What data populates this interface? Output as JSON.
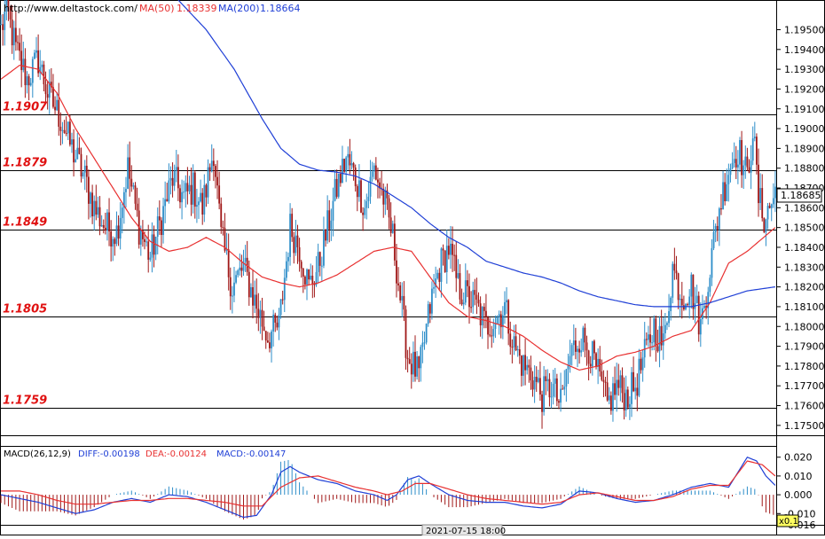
{
  "header": {
    "url": "http://www.deltastock.com/",
    "ma50_label": "MA(50)",
    "ma50_value": "1.18339",
    "ma200_label": "MA(200)",
    "ma200_value": "1.18664"
  },
  "macd_header": {
    "label": "MACD(26,12,9)",
    "diff": "DIFF:-0.00198",
    "dea": "DEA:-0.00124",
    "macd": "MACD:-0.00147"
  },
  "footer": {
    "date_label": "2021-07-15 18:00",
    "zoom_label": "x0.1"
  },
  "colors": {
    "bull": "#2e8ec9",
    "bear": "#a01818",
    "ma50": "#e83030",
    "ma200": "#1f3fd6",
    "level_text": "#e01010"
  },
  "chart_data": [
    {
      "type": "candlestick",
      "title": "",
      "ylim": [
        1.1745,
        1.1965
      ],
      "y_ticks": [
        "1.19500",
        "1.19400",
        "1.19300",
        "1.19200",
        "1.19100",
        "1.19000",
        "1.18900",
        "1.18800",
        "1.18700",
        "1.18600",
        "1.18500",
        "1.18400",
        "1.18300",
        "1.18200",
        "1.18100",
        "1.18000",
        "1.17900",
        "1.17800",
        "1.17700",
        "1.17600",
        "1.17500"
      ],
      "current_price": "1.18685",
      "levels": [
        {
          "label": "1.1907",
          "value": 1.1907
        },
        {
          "label": "1.1879",
          "value": 1.1879
        },
        {
          "label": "1.1849",
          "value": 1.1849
        },
        {
          "label": "1.1805",
          "value": 1.1805
        },
        {
          "label": "1.1759",
          "value": 1.1759
        }
      ],
      "price_anchors": [
        [
          0,
          1.195
        ],
        [
          3,
          1.196
        ],
        [
          8,
          1.194
        ],
        [
          14,
          1.1925
        ],
        [
          20,
          1.1935
        ],
        [
          25,
          1.1918
        ],
        [
          32,
          1.1905
        ],
        [
          38,
          1.189
        ],
        [
          45,
          1.1875
        ],
        [
          50,
          1.186
        ],
        [
          56,
          1.185
        ],
        [
          62,
          1.1848
        ],
        [
          68,
          1.188
        ],
        [
          74,
          1.185
        ],
        [
          80,
          1.1835
        ],
        [
          86,
          1.1855
        ],
        [
          92,
          1.1875
        ],
        [
          98,
          1.1865
        ],
        [
          103,
          1.187
        ],
        [
          108,
          1.186
        ],
        [
          114,
          1.189
        ],
        [
          118,
          1.1845
        ],
        [
          124,
          1.182
        ],
        [
          130,
          1.183
        ],
        [
          137,
          1.181
        ],
        [
          143,
          1.1795
        ],
        [
          149,
          1.18
        ],
        [
          155,
          1.185
        ],
        [
          160,
          1.184
        ],
        [
          165,
          1.182
        ],
        [
          170,
          1.183
        ],
        [
          175,
          1.185
        ],
        [
          180,
          1.187
        ],
        [
          185,
          1.1885
        ],
        [
          190,
          1.1875
        ],
        [
          195,
          1.186
        ],
        [
          200,
          1.188
        ],
        [
          205,
          1.1865
        ],
        [
          210,
          1.1845
        ],
        [
          214,
          1.1815
        ],
        [
          218,
          1.1785
        ],
        [
          224,
          1.1775
        ],
        [
          230,
          1.181
        ],
        [
          235,
          1.183
        ],
        [
          240,
          1.184
        ],
        [
          245,
          1.182
        ],
        [
          250,
          1.1815
        ],
        [
          255,
          1.181
        ],
        [
          260,
          1.18
        ],
        [
          266,
          1.1805
        ],
        [
          270,
          1.181
        ],
        [
          275,
          1.179
        ],
        [
          280,
          1.178
        ],
        [
          285,
          1.1775
        ],
        [
          290,
          1.1765
        ],
        [
          295,
          1.177
        ],
        [
          300,
          1.176
        ],
        [
          305,
          1.1785
        ],
        [
          310,
          1.1795
        ],
        [
          315,
          1.179
        ],
        [
          320,
          1.1775
        ],
        [
          325,
          1.176
        ],
        [
          330,
          1.177
        ],
        [
          335,
          1.1765
        ],
        [
          340,
          1.177
        ],
        [
          345,
          1.1785
        ],
        [
          350,
          1.18
        ],
        [
          355,
          1.179
        ],
        [
          360,
          1.183
        ],
        [
          365,
          1.1815
        ],
        [
          370,
          1.182
        ],
        [
          375,
          1.18
        ],
        [
          380,
          1.183
        ],
        [
          385,
          1.186
        ],
        [
          390,
          1.188
        ],
        [
          395,
          1.189
        ],
        [
          400,
          1.1875
        ],
        [
          403,
          1.19
        ],
        [
          406,
          1.1865
        ],
        [
          409,
          1.1855
        ],
        [
          412,
          1.186
        ],
        [
          415,
          1.1868
        ]
      ],
      "ma50_anchors": [
        [
          0,
          1.1925
        ],
        [
          10,
          1.1932
        ],
        [
          20,
          1.193
        ],
        [
          30,
          1.1918
        ],
        [
          40,
          1.19
        ],
        [
          50,
          1.1885
        ],
        [
          60,
          1.187
        ],
        [
          70,
          1.1855
        ],
        [
          80,
          1.1843
        ],
        [
          90,
          1.1838
        ],
        [
          100,
          1.184
        ],
        [
          110,
          1.1845
        ],
        [
          120,
          1.184
        ],
        [
          130,
          1.1832
        ],
        [
          140,
          1.1825
        ],
        [
          150,
          1.1822
        ],
        [
          160,
          1.182
        ],
        [
          170,
          1.1822
        ],
        [
          180,
          1.1826
        ],
        [
          190,
          1.1832
        ],
        [
          200,
          1.1838
        ],
        [
          210,
          1.184
        ],
        [
          220,
          1.1838
        ],
        [
          230,
          1.1825
        ],
        [
          240,
          1.1812
        ],
        [
          250,
          1.1805
        ],
        [
          260,
          1.1803
        ],
        [
          270,
          1.18
        ],
        [
          280,
          1.1795
        ],
        [
          290,
          1.1788
        ],
        [
          300,
          1.1782
        ],
        [
          310,
          1.1778
        ],
        [
          320,
          1.178
        ],
        [
          330,
          1.1785
        ],
        [
          340,
          1.1787
        ],
        [
          350,
          1.179
        ],
        [
          360,
          1.1795
        ],
        [
          370,
          1.1798
        ],
        [
          380,
          1.1812
        ],
        [
          390,
          1.1832
        ],
        [
          400,
          1.1838
        ],
        [
          415,
          1.185
        ]
      ],
      "ma200_anchors": [
        [
          95,
          1.1965
        ],
        [
          110,
          1.195
        ],
        [
          125,
          1.193
        ],
        [
          140,
          1.1905
        ],
        [
          150,
          1.189
        ],
        [
          160,
          1.1882
        ],
        [
          170,
          1.1879
        ],
        [
          180,
          1.1878
        ],
        [
          190,
          1.1876
        ],
        [
          200,
          1.1872
        ],
        [
          210,
          1.1866
        ],
        [
          220,
          1.186
        ],
        [
          230,
          1.1852
        ],
        [
          240,
          1.1845
        ],
        [
          250,
          1.184
        ],
        [
          260,
          1.1833
        ],
        [
          270,
          1.183
        ],
        [
          280,
          1.1827
        ],
        [
          290,
          1.1825
        ],
        [
          300,
          1.1822
        ],
        [
          310,
          1.1818
        ],
        [
          320,
          1.1815
        ],
        [
          330,
          1.1813
        ],
        [
          340,
          1.1811
        ],
        [
          350,
          1.181
        ],
        [
          360,
          1.181
        ],
        [
          370,
          1.181
        ],
        [
          380,
          1.1812
        ],
        [
          390,
          1.1815
        ],
        [
          400,
          1.1818
        ],
        [
          415,
          1.182
        ]
      ]
    },
    {
      "type": "macd",
      "ylim": [
        -0.016,
        0.026
      ],
      "y_ticks": [
        "0.020",
        "0.010",
        "0.000",
        "-0.010",
        "-0.016"
      ],
      "diff_anchors": [
        [
          0,
          0.0
        ],
        [
          10,
          -0.002
        ],
        [
          20,
          -0.004
        ],
        [
          30,
          -0.007
        ],
        [
          40,
          -0.01
        ],
        [
          50,
          -0.008
        ],
        [
          60,
          -0.004
        ],
        [
          70,
          -0.002
        ],
        [
          80,
          -0.004
        ],
        [
          90,
          0.0
        ],
        [
          100,
          -0.001
        ],
        [
          110,
          -0.004
        ],
        [
          120,
          -0.008
        ],
        [
          130,
          -0.012
        ],
        [
          137,
          -0.011
        ],
        [
          145,
          0.0
        ],
        [
          150,
          0.012
        ],
        [
          155,
          0.015
        ],
        [
          160,
          0.012
        ],
        [
          170,
          0.008
        ],
        [
          180,
          0.006
        ],
        [
          190,
          0.002
        ],
        [
          200,
          0.0
        ],
        [
          207,
          -0.003
        ],
        [
          212,
          0.0
        ],
        [
          218,
          0.008
        ],
        [
          224,
          0.01
        ],
        [
          230,
          0.006
        ],
        [
          240,
          0.0
        ],
        [
          250,
          -0.003
        ],
        [
          260,
          -0.004
        ],
        [
          270,
          -0.004
        ],
        [
          280,
          -0.006
        ],
        [
          290,
          -0.007
        ],
        [
          300,
          -0.005
        ],
        [
          310,
          0.002
        ],
        [
          320,
          0.001
        ],
        [
          330,
          -0.002
        ],
        [
          340,
          -0.004
        ],
        [
          350,
          -0.003
        ],
        [
          360,
          0.0
        ],
        [
          370,
          0.004
        ],
        [
          380,
          0.006
        ],
        [
          390,
          0.004
        ],
        [
          400,
          0.02
        ],
        [
          405,
          0.018
        ],
        [
          410,
          0.01
        ],
        [
          415,
          0.005
        ]
      ],
      "dea_anchors": [
        [
          0,
          0.002
        ],
        [
          10,
          0.002
        ],
        [
          20,
          0.0
        ],
        [
          30,
          -0.003
        ],
        [
          40,
          -0.005
        ],
        [
          50,
          -0.005
        ],
        [
          60,
          -0.004
        ],
        [
          70,
          -0.003
        ],
        [
          80,
          -0.003
        ],
        [
          90,
          -0.002
        ],
        [
          100,
          -0.002
        ],
        [
          110,
          -0.003
        ],
        [
          120,
          -0.004
        ],
        [
          130,
          -0.006
        ],
        [
          140,
          -0.006
        ],
        [
          150,
          0.004
        ],
        [
          160,
          0.009
        ],
        [
          170,
          0.01
        ],
        [
          180,
          0.007
        ],
        [
          190,
          0.004
        ],
        [
          200,
          0.002
        ],
        [
          207,
          0.0
        ],
        [
          215,
          0.002
        ],
        [
          222,
          0.006
        ],
        [
          230,
          0.006
        ],
        [
          240,
          0.003
        ],
        [
          250,
          0.0
        ],
        [
          260,
          -0.002
        ],
        [
          270,
          -0.003
        ],
        [
          280,
          -0.004
        ],
        [
          290,
          -0.005
        ],
        [
          300,
          -0.004
        ],
        [
          310,
          0.0
        ],
        [
          320,
          0.001
        ],
        [
          330,
          -0.001
        ],
        [
          340,
          -0.003
        ],
        [
          350,
          -0.003
        ],
        [
          360,
          -0.001
        ],
        [
          370,
          0.003
        ],
        [
          380,
          0.005
        ],
        [
          390,
          0.005
        ],
        [
          400,
          0.018
        ],
        [
          408,
          0.016
        ],
        [
          415,
          0.01
        ]
      ]
    }
  ]
}
